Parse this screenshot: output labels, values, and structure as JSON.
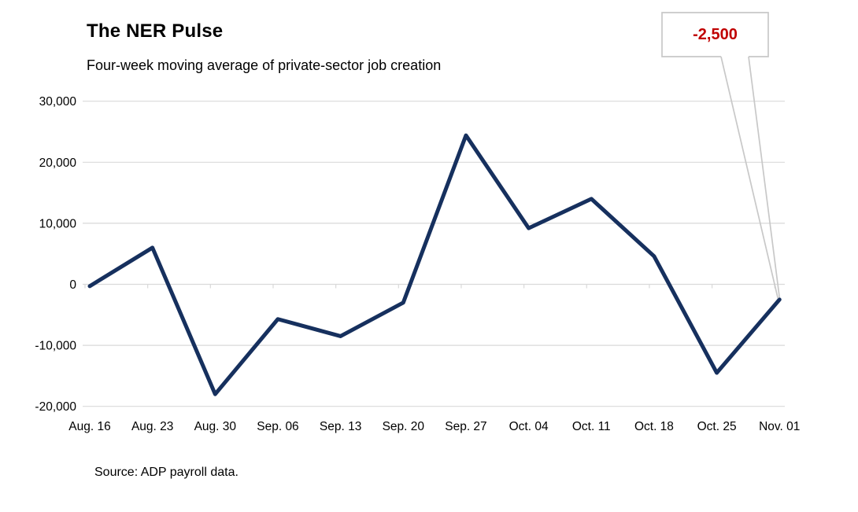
{
  "header": {
    "title": "The NER Pulse",
    "subtitle": "Four-week moving average of private-sector job creation"
  },
  "callout": {
    "label": "-2,500",
    "text_color": "#C00000",
    "border_color": "#C8C8C8"
  },
  "footer": {
    "source": "Source: ADP payroll data."
  },
  "chart_data": {
    "type": "line",
    "title": "The NER Pulse",
    "subtitle": "Four-week moving average of private-sector job creation",
    "categories": [
      "Aug. 16",
      "Aug. 23",
      "Aug. 30",
      "Sep. 06",
      "Sep. 13",
      "Sep. 20",
      "Sep. 27",
      "Oct. 04",
      "Oct. 11",
      "Oct. 18",
      "Oct. 25",
      "Nov. 01"
    ],
    "values": [
      -300,
      6000,
      -18000,
      -5700,
      -8500,
      -3000,
      24400,
      9200,
      14000,
      4600,
      -14500,
      -2500
    ],
    "xlabel": "",
    "ylabel": "",
    "ylim": [
      -20000,
      30000
    ],
    "ytick_step": 10000,
    "ytick_labels": [
      "30,000",
      "20,000",
      "10,000",
      "0",
      "-10,000",
      "-20,000"
    ],
    "grid": true,
    "grid_color": "#D9D9D9",
    "line_color": "#16305E",
    "text_color": "#000000",
    "legend": "none",
    "annotation": {
      "category": "Nov. 01",
      "index": 11,
      "label": "-2,500",
      "label_color": "#C00000"
    },
    "source": "Source: ADP payroll data."
  }
}
